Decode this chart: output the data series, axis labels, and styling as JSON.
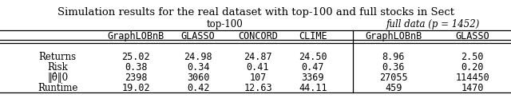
{
  "title": "Simulation results for the real dataset with top-100 and full stocks in Sect",
  "col_group1_label": "top-100",
  "col_group2_label": "full data (p = 1452)",
  "col_headers": [
    "GraphLOBnB",
    "GLASSO",
    "CONCORD",
    "CLIME",
    "GraphLOBnB",
    "GLASSO"
  ],
  "row_labels": [
    "Returns",
    "Risk",
    "‖θ̂‖0",
    "Runtime"
  ],
  "data": [
    [
      "25.02",
      "24.98",
      "24.87",
      "24.50",
      "8.96",
      "2.50"
    ],
    [
      "0.38",
      "0.34",
      "0.41",
      "0.47",
      "0.36",
      "0.20"
    ],
    [
      "2398",
      "3060",
      "107",
      "3369",
      "27055",
      "114450"
    ],
    [
      "19.02",
      "0.42",
      "12.63",
      "44.11",
      "459",
      "1470"
    ]
  ],
  "figsize": [
    6.4,
    1.38
  ],
  "dpi": 100
}
